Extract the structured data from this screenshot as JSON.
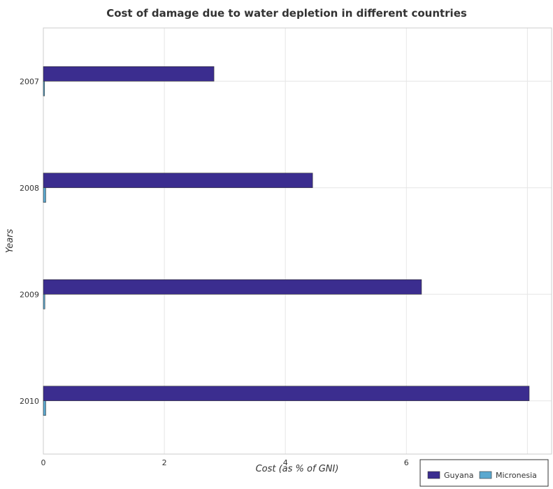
{
  "chart_data": {
    "type": "bar",
    "orientation": "horizontal",
    "title": "Cost of damage due to water depletion in different countries",
    "xlabel": "Cost (as % of GNI)",
    "ylabel": "Years",
    "categories": [
      "2007",
      "2008",
      "2009",
      "2010"
    ],
    "xlim": [
      0,
      8.4
    ],
    "xticks": [
      "0",
      "2",
      "4",
      "6",
      "8"
    ],
    "grid": true,
    "legend_position": "bottom-right",
    "series": [
      {
        "name": "Guyana",
        "color": "#3b2d8f",
        "values": [
          2.82,
          4.45,
          6.25,
          8.03
        ]
      },
      {
        "name": "Micronesia",
        "color": "#5ba8cf",
        "values": [
          0.02,
          0.04,
          0.025,
          0.04
        ]
      }
    ]
  }
}
